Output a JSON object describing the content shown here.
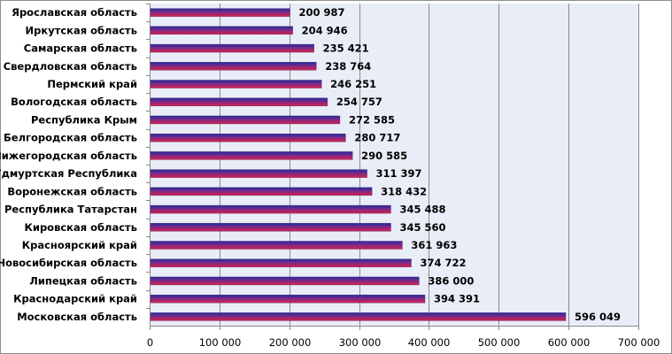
{
  "chart_data": {
    "type": "bar",
    "orientation": "horizontal",
    "title": "",
    "xlabel": "",
    "ylabel": "",
    "xlim": [
      0,
      700000
    ],
    "x_ticks": [
      0,
      100000,
      200000,
      300000,
      400000,
      500000,
      600000,
      700000
    ],
    "x_tick_labels": [
      "0",
      "100 000",
      "200 000",
      "300 000",
      "400 000",
      "500 000",
      "600 000",
      "700 000"
    ],
    "grid": true,
    "legend": "none",
    "categories": [
      "Ярославская область",
      "Иркутская область",
      "Самарская область",
      "Свердловская область",
      "Пермский край",
      "Вологодская область",
      "Республика  Крым",
      "Белгородская область",
      "Нижегородская область",
      "Удмуртская Республика",
      "Воронежская область",
      "Республика  Татарстан",
      "Кировская область",
      "Красноярский край",
      "Новосибирская область",
      "Липецкая  область",
      "Краснодарский край",
      "Московская  область"
    ],
    "values": [
      200987,
      204946,
      235421,
      238764,
      246251,
      254757,
      272585,
      280717,
      290585,
      311397,
      318432,
      345488,
      345560,
      361963,
      374722,
      386000,
      394391,
      596049
    ],
    "value_labels": [
      "200 987",
      "204 946",
      "235 421",
      "238 764",
      "246 251",
      "254 757",
      "272 585",
      "280 717",
      "290 585",
      "311 397",
      "318 432",
      "345 488",
      "345 560",
      "361 963",
      "374 722",
      "386 000",
      "394 391",
      "596 049"
    ],
    "colors": {
      "plot_background": "#e9edf7",
      "gridline": "#8a8a8a",
      "bar_top": "#1f2a9c",
      "bar_bottom": "#d8204a",
      "bar_mid": "#7a2a8a"
    }
  }
}
